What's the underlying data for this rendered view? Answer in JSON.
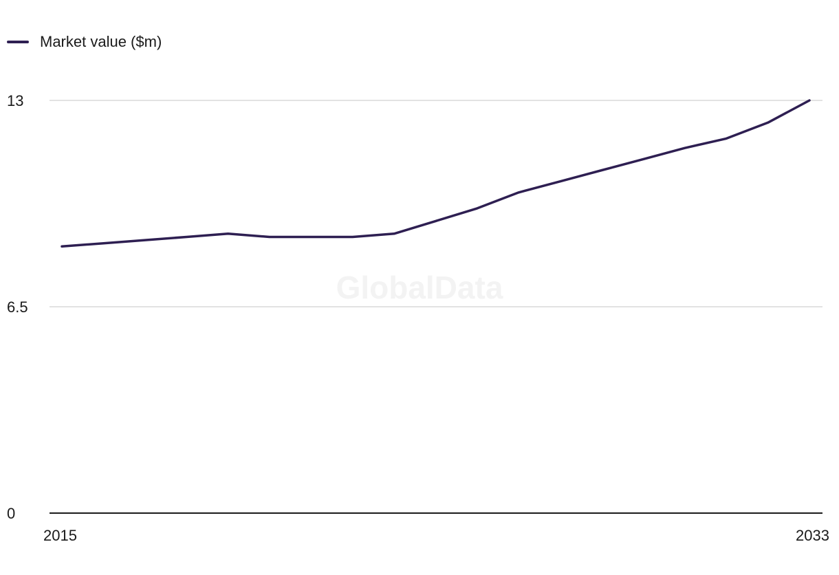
{
  "legend": {
    "label": "Market value ($m)"
  },
  "watermark": "GlobalData",
  "colors": {
    "line": "#2e1f52",
    "grid": "#d9d9d9",
    "axis": "#1a1a1a"
  },
  "chart_data": {
    "type": "line",
    "title": "",
    "xlabel": "",
    "ylabel": "",
    "x": [
      2015,
      2016,
      2017,
      2018,
      2019,
      2020,
      2021,
      2022,
      2023,
      2024,
      2025,
      2026,
      2027,
      2028,
      2029,
      2030,
      2031,
      2032,
      2033
    ],
    "series": [
      {
        "name": "Market value ($m)",
        "values": [
          8.4,
          8.5,
          8.6,
          8.7,
          8.8,
          8.7,
          8.7,
          8.7,
          8.8,
          9.2,
          9.6,
          10.1,
          10.45,
          10.8,
          11.15,
          11.5,
          11.8,
          12.3,
          13.0
        ]
      }
    ],
    "xticks": [
      "2015",
      "2033"
    ],
    "yticks": [
      {
        "value": 0,
        "label": "0"
      },
      {
        "value": 6.5,
        "label": "6.5"
      },
      {
        "value": 13,
        "label": "13"
      }
    ],
    "ylim": [
      0,
      13
    ],
    "grid": true,
    "legend_position": "top-left"
  }
}
